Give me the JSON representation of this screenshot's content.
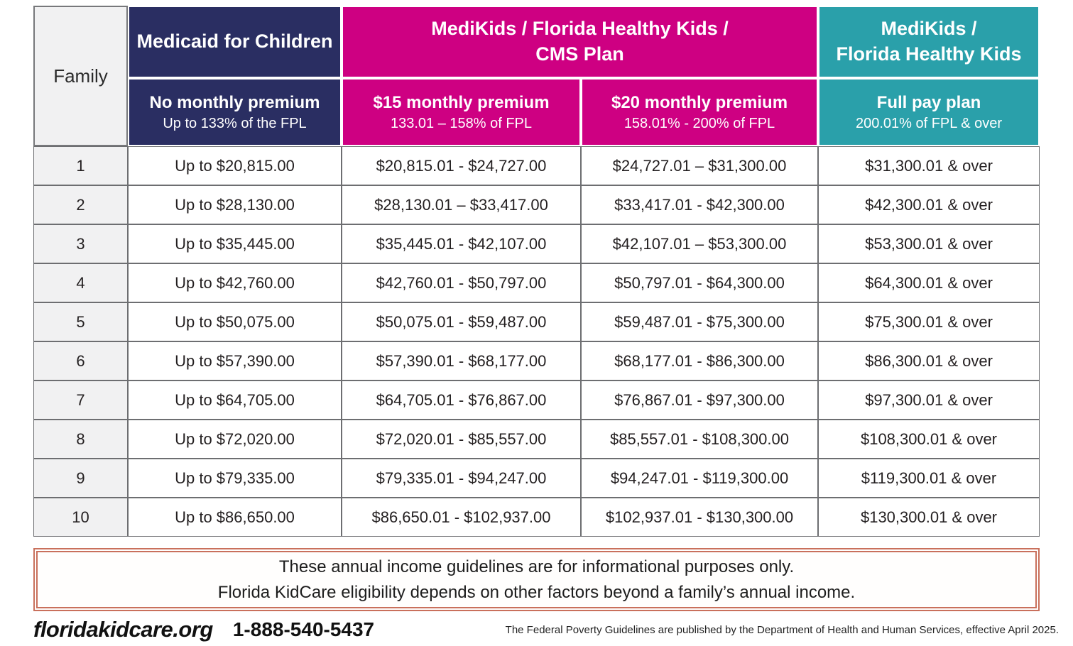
{
  "table": {
    "family_header": "Family",
    "groups": {
      "medicaid": {
        "title": "Medicaid for Children"
      },
      "cms": {
        "line1": "MediKids / Florida Healthy Kids /",
        "line2": "CMS Plan"
      },
      "fhk": {
        "line1": "MediKids /",
        "line2": "Florida Healthy Kids"
      }
    },
    "subheaders": {
      "medicaid": {
        "line1": "No monthly premium",
        "line2": "Up to 133% of the FPL"
      },
      "premium15": {
        "line1": "$15 monthly premium",
        "line2": "133.01 – 158% of FPL"
      },
      "premium20": {
        "line1": "$20 monthly premium",
        "line2": "158.01% - 200% of FPL"
      },
      "fullpay": {
        "line1": "Full pay plan",
        "line2": "200.01% of FPL & over"
      }
    },
    "rows": [
      {
        "family": "1",
        "medicaid": "Up to $20,815.00",
        "premium15": "$20,815.01 - $24,727.00",
        "premium20": "$24,727.01 – $31,300.00",
        "fullpay": "$31,300.01 & over"
      },
      {
        "family": "2",
        "medicaid": "Up to $28,130.00",
        "premium15": "$28,130.01 – $33,417.00",
        "premium20": "$33,417.01 - $42,300.00",
        "fullpay": "$42,300.01 & over"
      },
      {
        "family": "3",
        "medicaid": "Up to $35,445.00",
        "premium15": "$35,445.01 - $42,107.00",
        "premium20": "$42,107.01 – $53,300.00",
        "fullpay": "$53,300.01 & over"
      },
      {
        "family": "4",
        "medicaid": "Up to $42,760.00",
        "premium15": "$42,760.01 - $50,797.00",
        "premium20": "$50,797.01 - $64,300.00",
        "fullpay": "$64,300.01 & over"
      },
      {
        "family": "5",
        "medicaid": "Up to $50,075.00",
        "premium15": "$50,075.01 - $59,487.00",
        "premium20": "$59,487.01 - $75,300.00",
        "fullpay": "$75,300.01 & over"
      },
      {
        "family": "6",
        "medicaid": "Up to $57,390.00",
        "premium15": "$57,390.01 - $68,177.00",
        "premium20": "$68,177.01 - $86,300.00",
        "fullpay": "$86,300.01 & over"
      },
      {
        "family": "7",
        "medicaid": "Up to $64,705.00",
        "premium15": "$64,705.01 - $76,867.00",
        "premium20": "$76,867.01 - $97,300.00",
        "fullpay": "$97,300.01 & over"
      },
      {
        "family": "8",
        "medicaid": "Up to $72,020.00",
        "premium15": "$72,020.01 - $85,557.00",
        "premium20": "$85,557.01 - $108,300.00",
        "fullpay": "$108,300.01 & over"
      },
      {
        "family": "9",
        "medicaid": "Up to $79,335.00",
        "premium15": "$79,335.01 - $94,247.00",
        "premium20": "$94,247.01 - $119,300.00",
        "fullpay": "$119,300.01 & over"
      },
      {
        "family": "10",
        "medicaid": "Up to $86,650.00",
        "premium15": "$86,650.01 - $102,937.00",
        "premium20": "$102,937.01 - $130,300.00",
        "fullpay": "$130,300.01 & over"
      }
    ]
  },
  "notice": {
    "line1": "These annual income guidelines are for informational purposes only.",
    "line2": "Florida KidCare eligibility depends on other factors beyond a family’s annual income."
  },
  "footer": {
    "website": "floridakidcare.org",
    "phone": "1-888-540-5437",
    "fine_print": "The Federal Poverty Guidelines are published by the Department of Health and Human Services, effective April 2025."
  },
  "colors": {
    "navy": "#2a2e62",
    "magenta": "#ce0082",
    "teal": "#2aa0aa",
    "notice_border": "#c9705c",
    "grid_border": "#6d6e71",
    "family_bg": "#f1f1f2",
    "text": "#231f20"
  }
}
